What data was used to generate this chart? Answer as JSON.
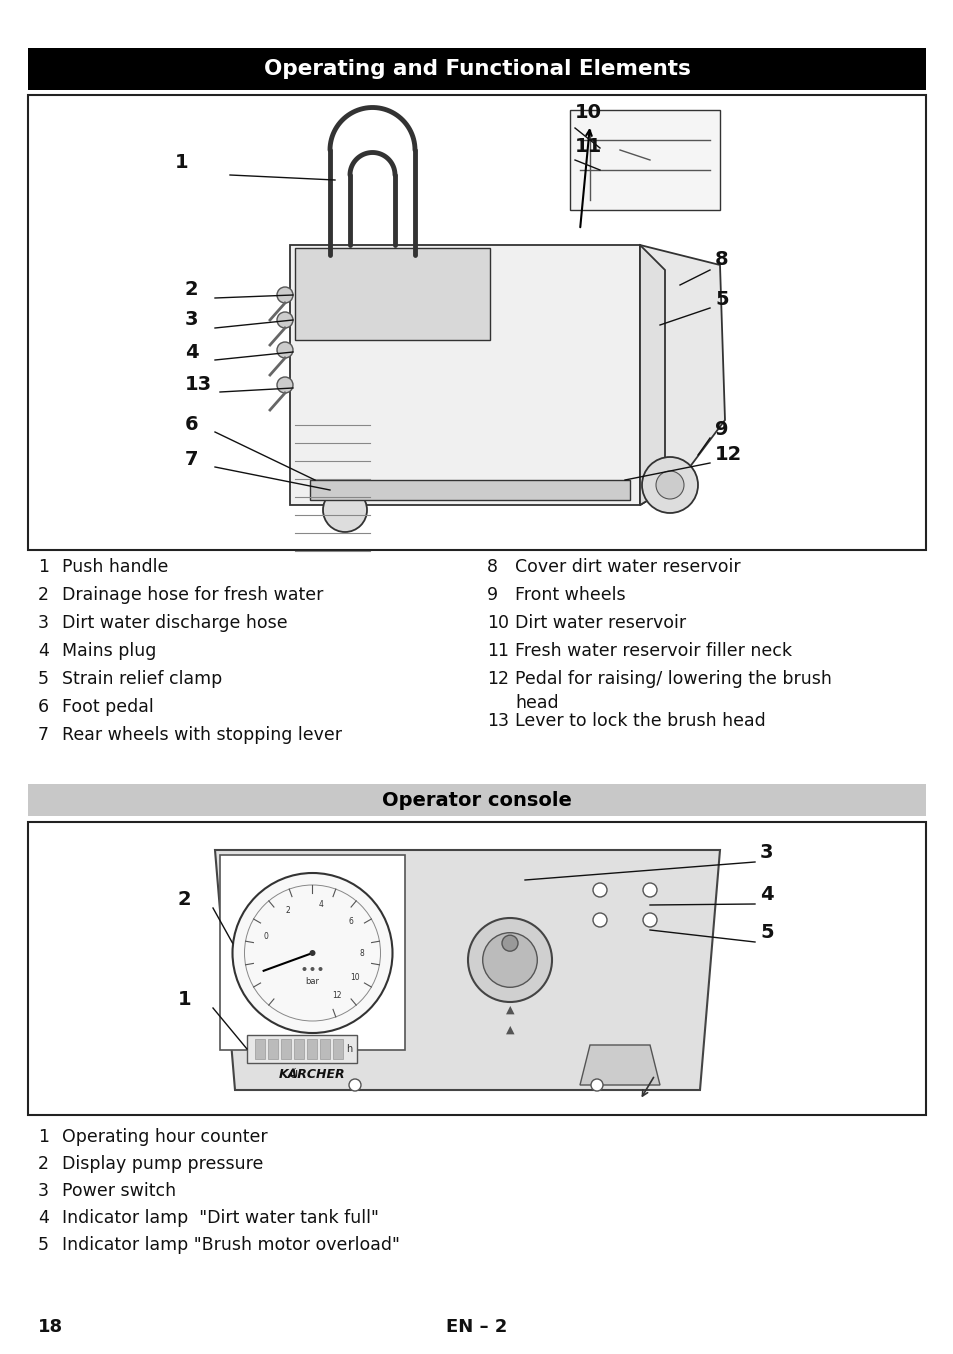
{
  "title": "Operating and Functional Elements",
  "subtitle": "Operator console",
  "page_number": "18",
  "center_text": "EN – 2",
  "background_color": "#ffffff",
  "title_bg_color": "#000000",
  "title_text_color": "#ffffff",
  "subtitle_bg_color": "#c8c8c8",
  "subtitle_text_color": "#000000",
  "left_items": [
    [
      "1",
      "Push handle"
    ],
    [
      "2",
      "Drainage hose for fresh water"
    ],
    [
      "3",
      "Dirt water discharge hose"
    ],
    [
      "4",
      "Mains plug"
    ],
    [
      "5",
      "Strain relief clamp"
    ],
    [
      "6",
      "Foot pedal"
    ],
    [
      "7",
      "Rear wheels with stopping lever"
    ]
  ],
  "right_items": [
    [
      "8",
      "Cover dirt water reservoir"
    ],
    [
      "9",
      "Front wheels"
    ],
    [
      "10",
      "Dirt water reservoir"
    ],
    [
      "11",
      "Fresh water reservoir filler neck"
    ],
    [
      "12",
      "Pedal for raising/ lowering the brush\n     head"
    ],
    [
      "13",
      "Lever to lock the brush head"
    ]
  ],
  "console_items": [
    [
      "1",
      "Operating hour counter"
    ],
    [
      "2",
      "Display pump pressure"
    ],
    [
      "3",
      "Power switch"
    ],
    [
      "4",
      "Indicator lamp  \"Dirt water tank full\""
    ],
    [
      "5",
      "Indicator lamp \"Brush motor overload\""
    ]
  ]
}
